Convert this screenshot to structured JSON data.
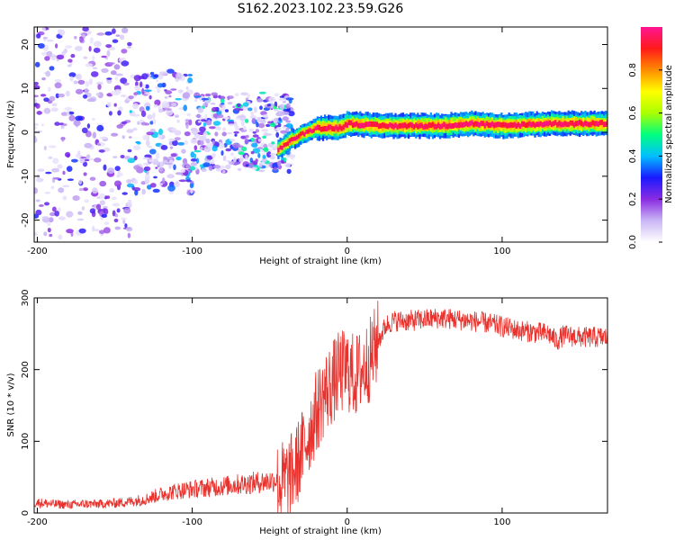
{
  "title": "S162.2023.102.23.59.G26",
  "colors": {
    "snr_line": "#e8322d",
    "colorbar_stops": [
      "#ffffff",
      "#c9b6f5",
      "#8a2be2",
      "#1a1aff",
      "#00bfff",
      "#00ff7f",
      "#aaff00",
      "#ffff00",
      "#ff8c00",
      "#ff1a1a",
      "#ff1493"
    ]
  },
  "chart_data": [
    {
      "type": "heatmap",
      "panel": "spectrogram",
      "xlabel": "Height of straight line (km)",
      "ylabel": "Frequency (Hz)",
      "xlim": [
        -202,
        168
      ],
      "ylim": [
        -25,
        24
      ],
      "xticks": [
        -200,
        -100,
        0,
        100
      ],
      "yticks": [
        -20,
        -10,
        0,
        10,
        20
      ],
      "colorbar": {
        "label": "Normalized spectral amplitude",
        "range": [
          0.0,
          1.0
        ],
        "ticks": [
          "0.0",
          "0.2",
          "0.4",
          "0.6",
          "0.8"
        ]
      },
      "features": {
        "noise_region_km": [
          -202,
          -45
        ],
        "signal_line_km": [
          -45,
          168
        ],
        "signal_freq_hz": [
          [
            -45,
            -4
          ],
          [
            -38,
            -2
          ],
          [
            -30,
            -0.5
          ],
          [
            -20,
            1
          ],
          [
            -5,
            1
          ],
          [
            0,
            2
          ],
          [
            20,
            1.5
          ],
          [
            60,
            1.5
          ],
          [
            80,
            2
          ],
          [
            100,
            1.5
          ],
          [
            130,
            2
          ],
          [
            168,
            2
          ]
        ]
      }
    },
    {
      "type": "line",
      "panel": "snr",
      "xlabel": "Height of straight line (km)",
      "ylabel": "SNR (10 * v/v)",
      "xlim": [
        -202,
        168
      ],
      "ylim": [
        0,
        300
      ],
      "xticks": [
        -200,
        -100,
        0,
        100
      ],
      "yticks": [
        0,
        100,
        200,
        300
      ],
      "series": [
        {
          "x": [
            -202,
            -190,
            -180,
            -170,
            -160,
            -150,
            -140,
            -130,
            -120,
            -110,
            -100,
            -90,
            -80,
            -70,
            -60,
            -50,
            -45,
            -40,
            -35,
            -30,
            -25,
            -20,
            -15,
            -10,
            -5,
            0,
            5,
            10,
            15,
            20,
            25,
            30,
            40,
            50,
            60,
            70,
            80,
            90,
            100,
            110,
            120,
            130,
            135,
            140,
            150,
            160,
            168
          ],
          "y": [
            12,
            10,
            9,
            10,
            10,
            11,
            13,
            16,
            22,
            26,
            28,
            30,
            32,
            34,
            36,
            38,
            40,
            45,
            55,
            80,
            110,
            140,
            165,
            180,
            195,
            200,
            190,
            200,
            215,
            240,
            262,
            268,
            268,
            270,
            272,
            270,
            268,
            265,
            260,
            255,
            252,
            250,
            240,
            248,
            245,
            245,
            245
          ]
        }
      ]
    }
  ]
}
